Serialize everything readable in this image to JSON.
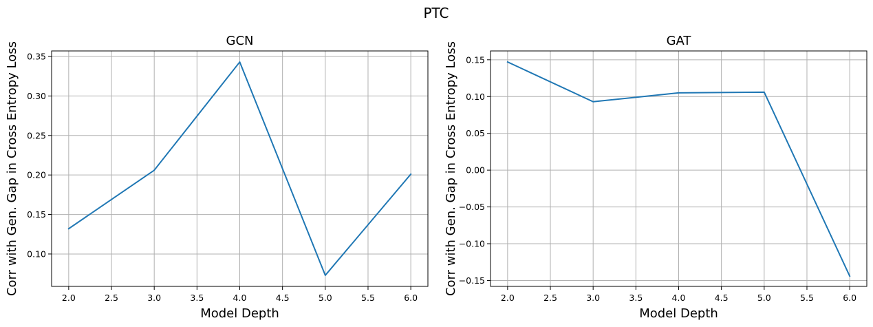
{
  "figure": {
    "suptitle": "PTC"
  },
  "colors": {
    "line": "#1f77b4",
    "grid": "#b0b0b0",
    "axes": "#000000",
    "background": "#ffffff"
  },
  "chart_data": [
    {
      "type": "line",
      "title": "GCN",
      "xlabel": "Model Depth",
      "ylabel": "Corr with Gen. Gap in Cross Entropy Loss",
      "x": [
        2.0,
        3.0,
        4.0,
        5.0,
        6.0
      ],
      "series": [
        {
          "name": "GCN",
          "values": [
            0.132,
            0.206,
            0.343,
            0.073,
            0.201
          ]
        }
      ],
      "xlim": [
        1.8,
        6.2
      ],
      "ylim": [
        0.059,
        0.357
      ],
      "xticks": [
        2.0,
        2.5,
        3.0,
        3.5,
        4.0,
        4.5,
        5.0,
        5.5,
        6.0
      ],
      "xtick_labels": [
        "2.0",
        "2.5",
        "3.0",
        "3.5",
        "4.0",
        "4.5",
        "5.0",
        "5.5",
        "6.0"
      ],
      "yticks": [
        0.1,
        0.15,
        0.2,
        0.25,
        0.3,
        0.35
      ],
      "ytick_labels": [
        "0.10",
        "0.15",
        "0.20",
        "0.25",
        "0.30",
        "0.35"
      ],
      "grid": true
    },
    {
      "type": "line",
      "title": "GAT",
      "xlabel": "Model Depth",
      "ylabel": "Corr with Gen. Gap in Cross Entropy Loss",
      "x": [
        2.0,
        3.0,
        4.0,
        5.0,
        6.0
      ],
      "series": [
        {
          "name": "GAT",
          "values": [
            0.147,
            0.093,
            0.105,
            0.106,
            -0.144
          ]
        }
      ],
      "xlim": [
        1.8,
        6.2
      ],
      "ylim": [
        -0.158,
        0.162
      ],
      "xticks": [
        2.0,
        2.5,
        3.0,
        3.5,
        4.0,
        4.5,
        5.0,
        5.5,
        6.0
      ],
      "xtick_labels": [
        "2.0",
        "2.5",
        "3.0",
        "3.5",
        "4.0",
        "4.5",
        "5.0",
        "5.5",
        "6.0"
      ],
      "yticks": [
        -0.15,
        -0.1,
        -0.05,
        0.0,
        0.05,
        0.1,
        0.15
      ],
      "ytick_labels": [
        "−0.15",
        "−0.10",
        "−0.05",
        "0.00",
        "0.05",
        "0.10",
        "0.15"
      ],
      "grid": true
    }
  ]
}
